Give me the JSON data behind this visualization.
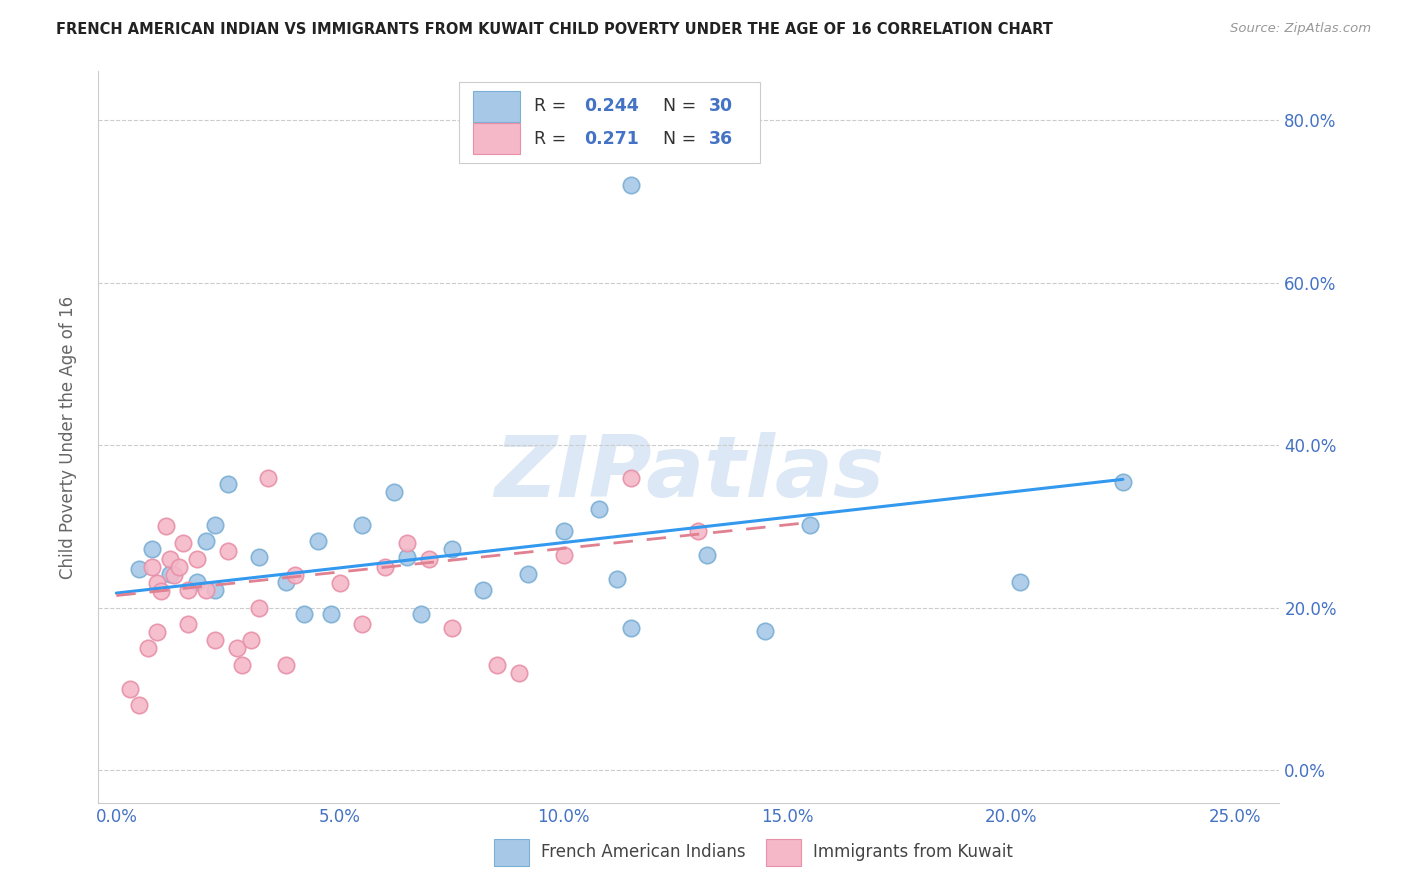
{
  "title": "FRENCH AMERICAN INDIAN VS IMMIGRANTS FROM KUWAIT CHILD POVERTY UNDER THE AGE OF 16 CORRELATION CHART",
  "source": "Source: ZipAtlas.com",
  "ylabel_label": "Child Poverty Under the Age of 16",
  "legend_label1": "French American Indians",
  "legend_label2": "Immigrants from Kuwait",
  "R1": "0.244",
  "N1": "30",
  "R2": "0.271",
  "N2": "36",
  "color_blue_fill": "#a8c8e8",
  "color_blue_edge": "#7bafd4",
  "color_pink_fill": "#f4b8c8",
  "color_pink_edge": "#e890a8",
  "color_axis_text": "#4472c4",
  "color_grid": "#cccccc",
  "color_title": "#222222",
  "color_source": "#999999",
  "color_ylabel": "#666666",
  "color_legend_rtext": "#333333",
  "color_legend_val": "#4472c4",
  "watermark": "ZIPatlas",
  "watermark_color": "#dce8f5",
  "blue_scatter_x": [
    0.005,
    0.012,
    0.018,
    0.022,
    0.008,
    0.02,
    0.022,
    0.025,
    0.032,
    0.038,
    0.042,
    0.045,
    0.048,
    0.055,
    0.062,
    0.065,
    0.068,
    0.075,
    0.082,
    0.092,
    0.1,
    0.108,
    0.112,
    0.115,
    0.115,
    0.132,
    0.145,
    0.155,
    0.202,
    0.225
  ],
  "blue_scatter_y": [
    0.248,
    0.242,
    0.232,
    0.222,
    0.272,
    0.282,
    0.302,
    0.352,
    0.262,
    0.232,
    0.192,
    0.282,
    0.192,
    0.302,
    0.342,
    0.262,
    0.192,
    0.272,
    0.222,
    0.242,
    0.295,
    0.322,
    0.235,
    0.175,
    0.72,
    0.265,
    0.172,
    0.302,
    0.232,
    0.355
  ],
  "pink_scatter_x": [
    0.003,
    0.005,
    0.007,
    0.008,
    0.009,
    0.009,
    0.01,
    0.011,
    0.012,
    0.013,
    0.014,
    0.015,
    0.016,
    0.016,
    0.018,
    0.02,
    0.022,
    0.025,
    0.027,
    0.028,
    0.03,
    0.032,
    0.034,
    0.038,
    0.04,
    0.05,
    0.055,
    0.06,
    0.065,
    0.07,
    0.075,
    0.085,
    0.09,
    0.1,
    0.115,
    0.13
  ],
  "pink_scatter_y": [
    0.1,
    0.08,
    0.15,
    0.25,
    0.17,
    0.23,
    0.22,
    0.3,
    0.26,
    0.24,
    0.25,
    0.28,
    0.222,
    0.18,
    0.26,
    0.222,
    0.16,
    0.27,
    0.15,
    0.13,
    0.16,
    0.2,
    0.36,
    0.13,
    0.24,
    0.23,
    0.18,
    0.25,
    0.28,
    0.26,
    0.175,
    0.13,
    0.12,
    0.265,
    0.36,
    0.295
  ],
  "blue_trend_x": [
    0.0,
    0.225
  ],
  "blue_trend_y": [
    0.218,
    0.358
  ],
  "pink_trend_x": [
    0.0,
    0.155
  ],
  "pink_trend_y": [
    0.215,
    0.305
  ],
  "xticks": [
    0.0,
    0.05,
    0.1,
    0.15,
    0.2,
    0.25
  ],
  "xticklabels": [
    "0.0%",
    "5.0%",
    "10.0%",
    "15.0%",
    "20.0%",
    "25.0%"
  ],
  "yticks": [
    0.0,
    0.2,
    0.4,
    0.6,
    0.8
  ],
  "yticklabels": [
    "0.0%",
    "20.0%",
    "40.0%",
    "60.0%",
    "80.0%"
  ],
  "xlim": [
    -0.004,
    0.26
  ],
  "ylim": [
    -0.04,
    0.86
  ]
}
